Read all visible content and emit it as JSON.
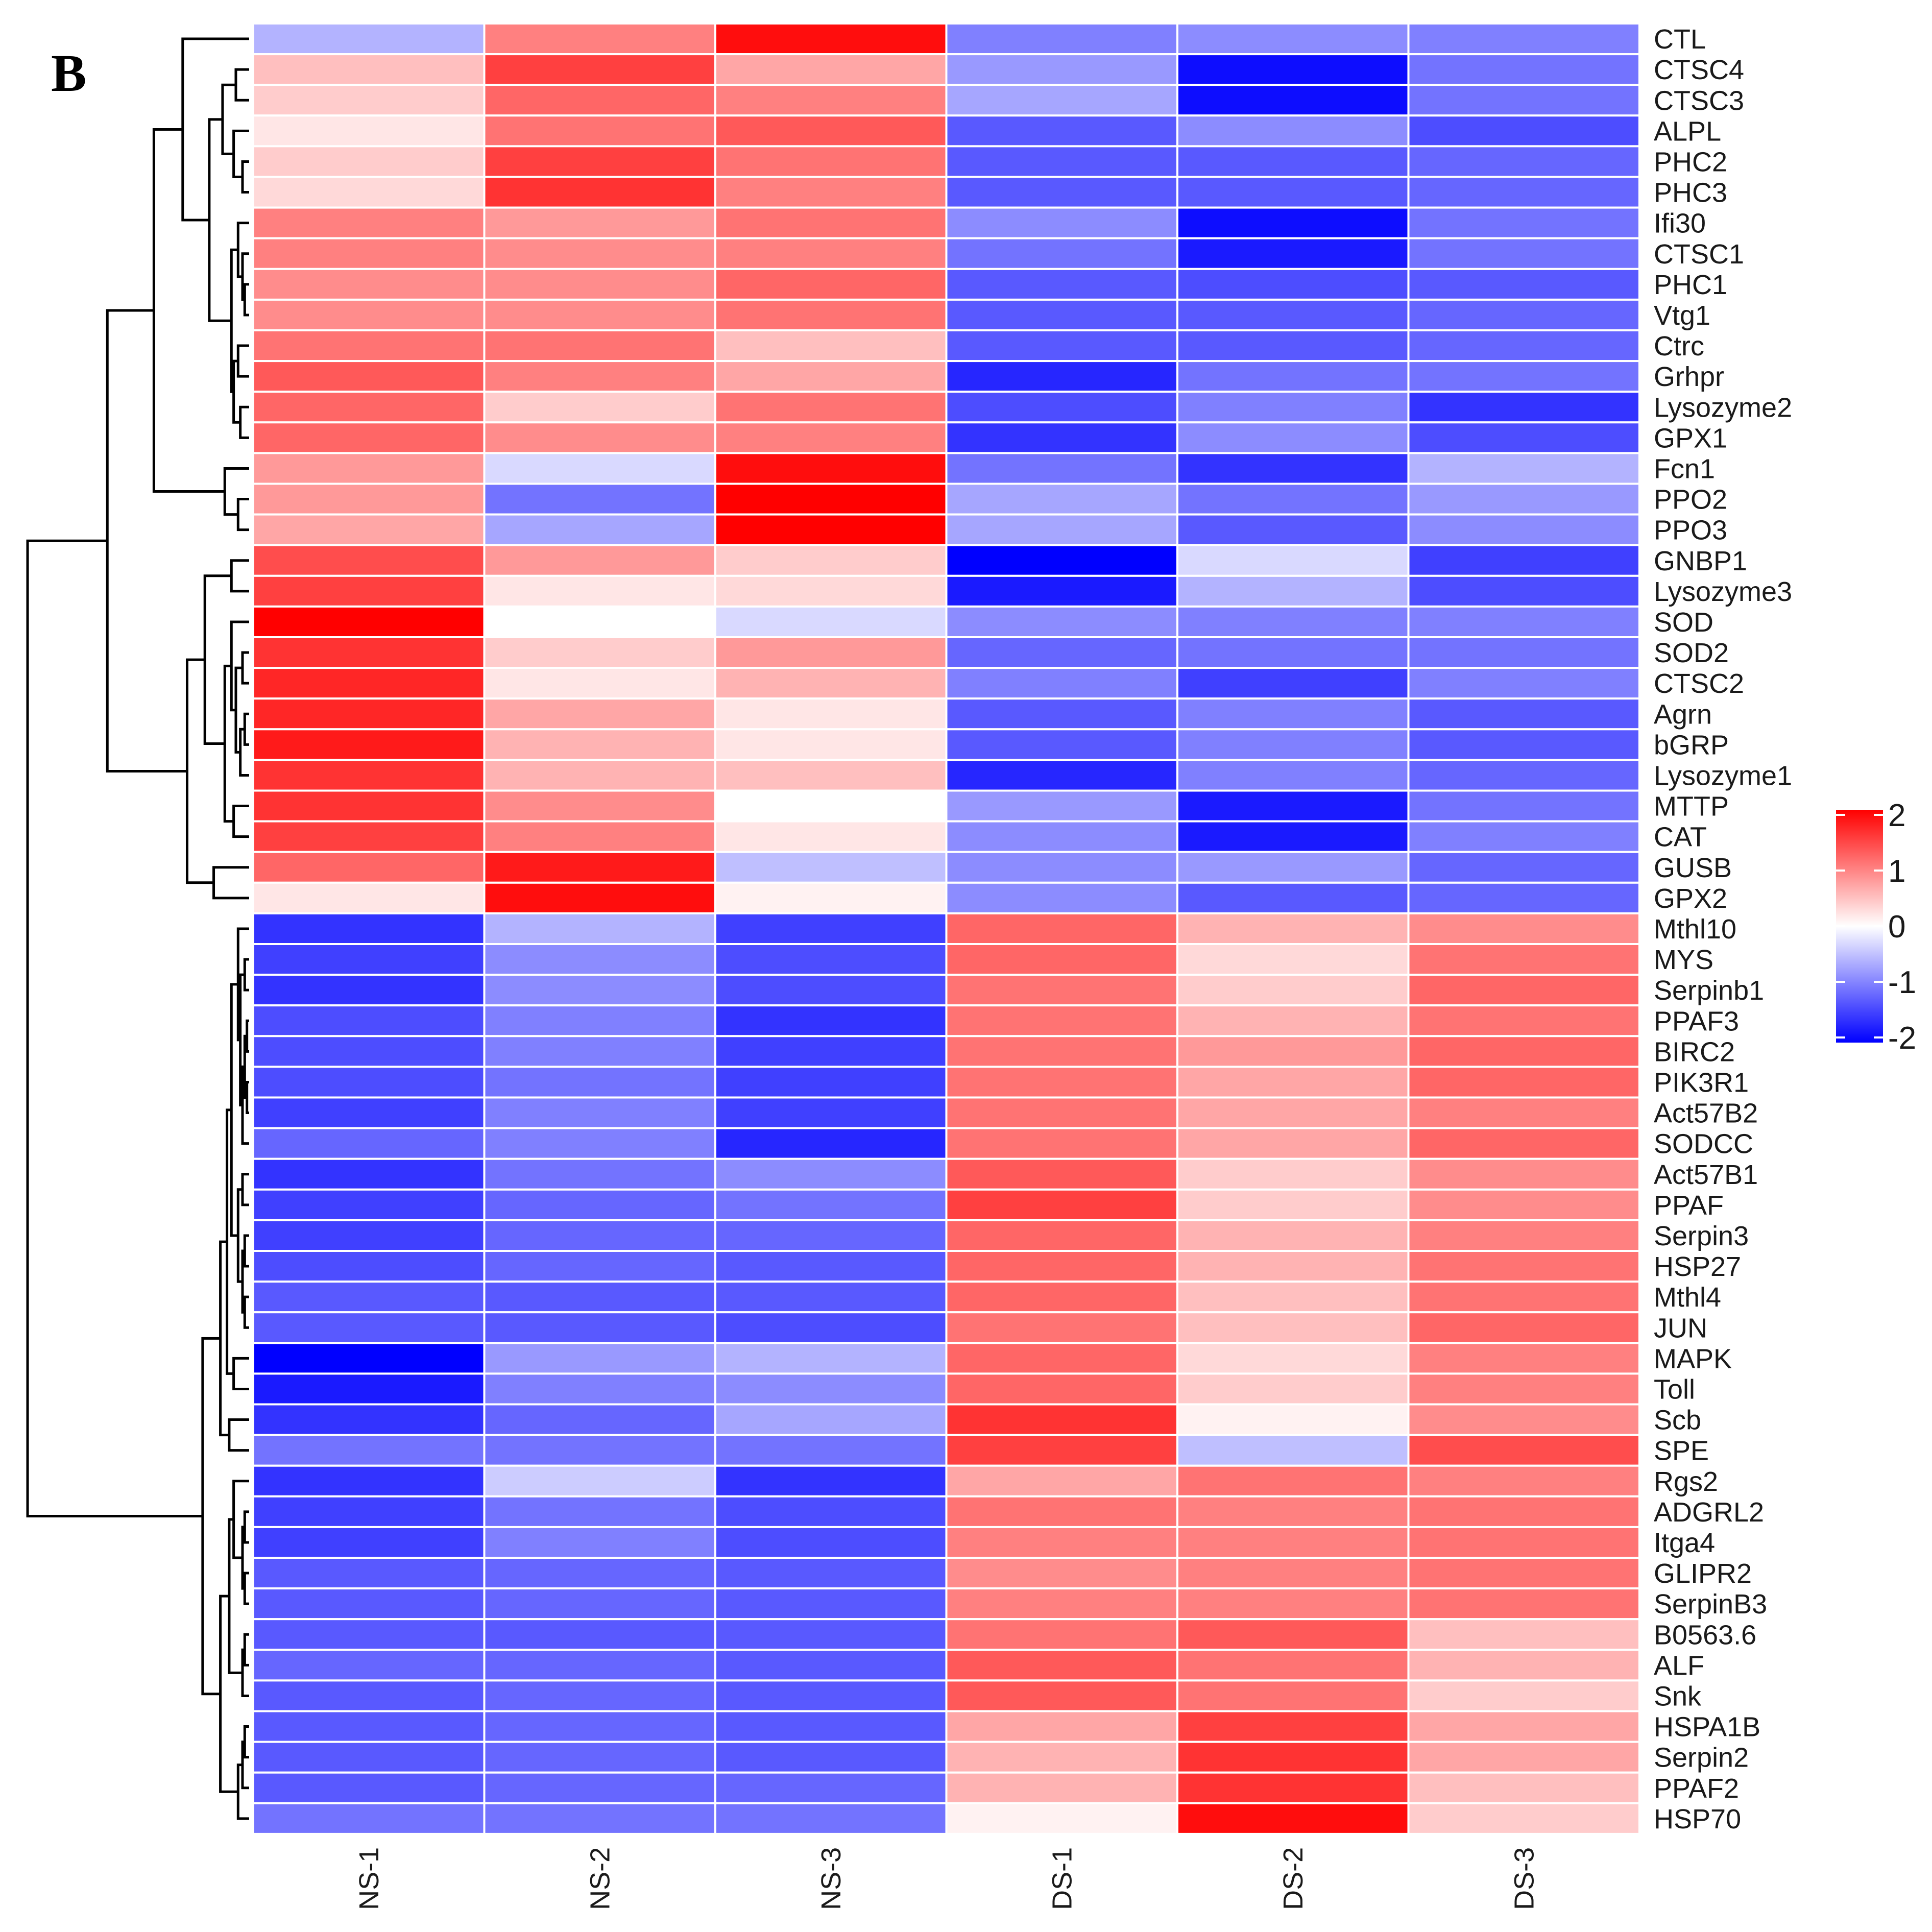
{
  "panel_label": "B",
  "chart_data": {
    "type": "heatmap",
    "title": "",
    "xlabel": "",
    "ylabel": "",
    "columns": [
      "NS-1",
      "NS-2",
      "NS-3",
      "DS-1",
      "DS-2",
      "DS-3"
    ],
    "rows": [
      "CTL",
      "CTSC4",
      "CTSC3",
      "ALPL",
      "PHC2",
      "PHC3",
      "Ifi30",
      "CTSC1",
      "PHC1",
      "Vtg1",
      "Ctrc",
      "Grhpr",
      "Lysozyme2",
      "GPX1",
      "Fcn1",
      "PPO2",
      "PPO3",
      "GNBP1",
      "Lysozyme3",
      "SOD",
      "SOD2",
      "CTSC2",
      "Agrn",
      "bGRP",
      "Lysozyme1",
      "MTTP",
      "CAT",
      "GUSB",
      "GPX2",
      "Mthl10",
      "MYS",
      "Serpinb1",
      "PPAF3",
      "BIRC2",
      "PIK3R1",
      "Act57B2",
      "SODCC",
      "Act57B1",
      "PPAF",
      "Serpin3",
      "HSP27",
      "Mthl4",
      "JUN",
      "MAPK",
      "Toll",
      "Scb",
      "SPE",
      "Rgs2",
      "ADGRL2",
      "Itga4",
      "GLIPR2",
      "SerpinB3",
      "B0563.6",
      "ALF",
      "Snk",
      "HSPA1B",
      "Serpin2",
      "PPAF2",
      "HSP70"
    ],
    "values": [
      [
        -0.6,
        1.0,
        1.9,
        -1.0,
        -0.9,
        -1.0
      ],
      [
        0.5,
        1.5,
        0.7,
        -0.8,
        -1.9,
        -1.1
      ],
      [
        0.4,
        1.2,
        1.0,
        -0.7,
        -1.9,
        -1.1
      ],
      [
        0.2,
        1.1,
        1.3,
        -1.3,
        -0.9,
        -1.4
      ],
      [
        0.4,
        1.5,
        1.1,
        -1.3,
        -1.3,
        -1.2
      ],
      [
        0.3,
        1.6,
        1.0,
        -1.3,
        -1.3,
        -1.2
      ],
      [
        1.0,
        0.8,
        1.1,
        -0.9,
        -1.9,
        -1.1
      ],
      [
        1.0,
        0.9,
        1.0,
        -1.1,
        -1.8,
        -1.1
      ],
      [
        0.9,
        0.9,
        1.2,
        -1.3,
        -1.4,
        -1.3
      ],
      [
        0.9,
        0.9,
        1.1,
        -1.3,
        -1.3,
        -1.2
      ],
      [
        1.1,
        1.1,
        0.5,
        -1.3,
        -1.3,
        -1.2
      ],
      [
        1.3,
        1.0,
        0.7,
        -1.7,
        -1.1,
        -1.1
      ],
      [
        1.2,
        0.4,
        1.1,
        -1.4,
        -1.0,
        -1.6
      ],
      [
        1.2,
        0.9,
        1.0,
        -1.6,
        -0.9,
        -1.4
      ],
      [
        0.8,
        -0.3,
        1.9,
        -1.1,
        -1.6,
        -0.6
      ],
      [
        0.8,
        -1.1,
        2.0,
        -0.7,
        -1.1,
        -0.8
      ],
      [
        0.7,
        -0.7,
        2.0,
        -0.7,
        -1.3,
        -0.9
      ],
      [
        1.4,
        0.8,
        0.4,
        -2.0,
        -0.3,
        -1.5
      ],
      [
        1.5,
        0.2,
        0.3,
        -1.8,
        -0.6,
        -1.4
      ],
      [
        2.0,
        0.0,
        -0.3,
        -0.9,
        -1.0,
        -1.0
      ],
      [
        1.6,
        0.4,
        0.8,
        -1.2,
        -1.1,
        -1.1
      ],
      [
        1.7,
        0.2,
        0.6,
        -1.0,
        -1.5,
        -1.0
      ],
      [
        1.7,
        0.7,
        0.2,
        -1.3,
        -1.0,
        -1.3
      ],
      [
        1.8,
        0.6,
        0.2,
        -1.3,
        -1.0,
        -1.3
      ],
      [
        1.6,
        0.6,
        0.5,
        -1.7,
        -1.0,
        -1.2
      ],
      [
        1.6,
        0.9,
        0.0,
        -0.8,
        -1.8,
        -1.1
      ],
      [
        1.5,
        1.0,
        0.2,
        -0.9,
        -1.8,
        -1.0
      ],
      [
        1.2,
        1.8,
        -0.5,
        -0.9,
        -0.8,
        -1.2
      ],
      [
        0.2,
        1.9,
        0.1,
        -0.9,
        -1.3,
        -1.2
      ],
      [
        -1.6,
        -0.6,
        -1.5,
        1.2,
        0.6,
        0.9
      ],
      [
        -1.5,
        -0.9,
        -1.4,
        1.2,
        0.3,
        1.1
      ],
      [
        -1.6,
        -0.9,
        -1.4,
        1.1,
        0.4,
        1.2
      ],
      [
        -1.4,
        -1.0,
        -1.6,
        1.1,
        0.6,
        1.1
      ],
      [
        -1.4,
        -1.0,
        -1.5,
        1.1,
        0.8,
        1.2
      ],
      [
        -1.4,
        -1.1,
        -1.5,
        1.1,
        0.7,
        1.2
      ],
      [
        -1.5,
        -1.0,
        -1.5,
        1.1,
        0.7,
        1.0
      ],
      [
        -1.2,
        -1.0,
        -1.7,
        1.1,
        0.7,
        1.2
      ],
      [
        -1.6,
        -1.1,
        -0.9,
        1.3,
        0.4,
        0.9
      ],
      [
        -1.5,
        -1.2,
        -1.1,
        1.5,
        0.4,
        0.9
      ],
      [
        -1.5,
        -1.2,
        -1.2,
        1.2,
        0.6,
        1.0
      ],
      [
        -1.4,
        -1.2,
        -1.3,
        1.2,
        0.6,
        1.1
      ],
      [
        -1.3,
        -1.3,
        -1.3,
        1.2,
        0.5,
        1.1
      ],
      [
        -1.3,
        -1.3,
        -1.4,
        1.1,
        0.5,
        1.2
      ],
      [
        -2.0,
        -0.8,
        -0.6,
        1.2,
        0.3,
        1.0
      ],
      [
        -1.8,
        -1.0,
        -0.9,
        1.2,
        0.4,
        1.0
      ],
      [
        -1.6,
        -1.2,
        -0.7,
        1.6,
        0.1,
        0.9
      ],
      [
        -1.1,
        -1.1,
        -1.1,
        1.5,
        -0.5,
        1.4
      ],
      [
        -1.6,
        -0.4,
        -1.6,
        0.7,
        1.1,
        1.0
      ],
      [
        -1.5,
        -1.1,
        -1.4,
        1.1,
        1.0,
        1.1
      ],
      [
        -1.5,
        -1.0,
        -1.4,
        1.0,
        1.0,
        1.1
      ],
      [
        -1.3,
        -1.2,
        -1.3,
        0.9,
        1.0,
        1.1
      ],
      [
        -1.3,
        -1.2,
        -1.3,
        1.0,
        1.0,
        1.1
      ],
      [
        -1.3,
        -1.3,
        -1.3,
        1.1,
        1.3,
        0.5
      ],
      [
        -1.2,
        -1.2,
        -1.3,
        1.3,
        1.1,
        0.6
      ],
      [
        -1.3,
        -1.2,
        -1.3,
        1.3,
        1.1,
        0.4
      ],
      [
        -1.3,
        -1.2,
        -1.3,
        0.7,
        1.5,
        0.7
      ],
      [
        -1.3,
        -1.2,
        -1.3,
        0.6,
        1.6,
        0.7
      ],
      [
        -1.3,
        -1.2,
        -1.2,
        0.6,
        1.6,
        0.5
      ],
      [
        -1.1,
        -1.1,
        -1.1,
        0.1,
        1.9,
        0.4
      ]
    ],
    "color_scale": {
      "low": "#0000ff",
      "mid": "#ffffff",
      "high": "#ff0000",
      "range": [
        -2,
        2
      ],
      "ticks": [
        "2",
        "1",
        "0",
        "-1",
        "-2"
      ]
    },
    "dendrogram": "row clustering tree on the left",
    "grid": "white lines between cells"
  }
}
